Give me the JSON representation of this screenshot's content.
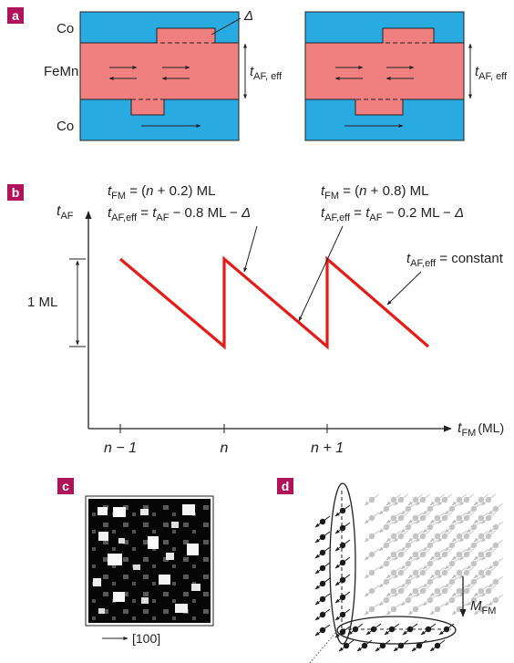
{
  "colors": {
    "co": "#29ABE2",
    "femn": "#F08080",
    "line": "#E41B17",
    "label_bg": "#B0135A",
    "ink": "#222222"
  },
  "panel_a": {
    "label": "a",
    "co_label": "Co",
    "femn_label": "FeMn",
    "co_bottom_label": "Co",
    "delta": "Δ",
    "t_var": "t",
    "t_sub": "AF, eff"
  },
  "panel_b": {
    "label": "b",
    "y_var": "t",
    "y_sub": "AF",
    "x_var": "t",
    "x_sub": "FM",
    "x_unit": "(ML)",
    "one_ml": "1 ML",
    "ticks": [
      "n − 1",
      "n",
      "n + 1"
    ],
    "ann1_line1": "t_FM = (n + 0.2) ML",
    "ann1_line2": "t_AF,eff = t_AF − 0.8 ML − Δ",
    "ann2_line1": "t_FM = (n + 0.8) ML",
    "ann2_line2": "t_AF,eff = t_AF − 0.2 ML − Δ",
    "ann3": "t_AF,eff = constant"
  },
  "panel_c": {
    "label": "c",
    "direction": "[100]"
  },
  "panel_d": {
    "label": "d",
    "m_var": "M",
    "m_sub": "FM"
  }
}
